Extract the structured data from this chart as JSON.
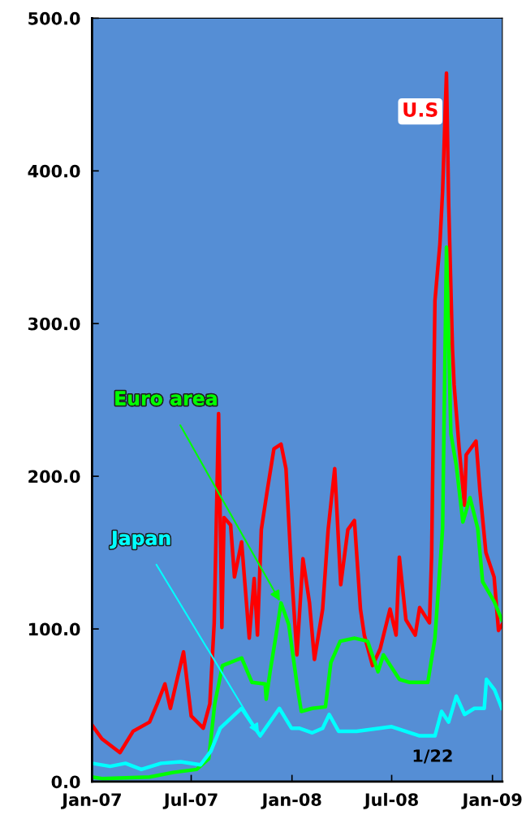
{
  "chart_data": {
    "type": "line",
    "xlim": [
      "2007-01-01",
      "2009-01-19"
    ],
    "xticks": [
      {
        "value": "2007-01-01",
        "label": "Jan-07"
      },
      {
        "value": "2007-07-01",
        "label": "Jul-07"
      },
      {
        "value": "2008-01-01",
        "label": "Jan-08"
      },
      {
        "value": "2008-07-01",
        "label": "Jul-08"
      },
      {
        "value": "2009-01-01",
        "label": "Jan-09"
      }
    ],
    "ylim": [
      0,
      500
    ],
    "yticks": [
      {
        "value": 0,
        "label": "0.0"
      },
      {
        "value": 100,
        "label": "100.0"
      },
      {
        "value": 200,
        "label": "200.0"
      },
      {
        "value": 300,
        "label": "300.0"
      },
      {
        "value": 400,
        "label": "400.0"
      },
      {
        "value": 500,
        "label": "500.0"
      }
    ],
    "grid": false,
    "legend": false,
    "marker": "none",
    "line_style": "solid",
    "annotations": [
      "1/22"
    ],
    "series": [
      {
        "name": "U.S",
        "color": "#ff0000",
        "x": [
          "2007-01-01",
          "2007-01-19",
          "2007-02-21",
          "2007-03-17",
          "2007-04-16",
          "2007-04-30",
          "2007-05-14",
          "2007-05-24",
          "2007-06-02",
          "2007-06-17",
          "2007-07-01",
          "2007-07-23",
          "2007-08-04",
          "2007-08-12",
          "2007-08-20",
          "2007-08-26",
          "2007-08-30",
          "2007-09-11",
          "2007-09-18",
          "2007-10-01",
          "2007-10-15",
          "2007-10-24",
          "2007-10-30",
          "2007-11-06",
          "2007-11-17",
          "2007-11-29",
          "2007-12-12",
          "2007-12-21",
          "2007-12-31",
          "2008-01-10",
          "2008-01-21",
          "2008-02-02",
          "2008-02-11",
          "2008-02-26",
          "2008-03-07",
          "2008-03-19",
          "2008-03-30",
          "2008-04-12",
          "2008-04-24",
          "2008-05-05",
          "2008-05-12",
          "2008-05-27",
          "2008-06-10",
          "2008-06-28",
          "2008-07-09",
          "2008-07-15",
          "2008-07-27",
          "2008-08-13",
          "2008-08-21",
          "2008-09-08",
          "2008-09-12",
          "2008-09-18",
          "2008-09-27",
          "2008-10-02",
          "2008-10-09",
          "2008-10-13",
          "2008-10-20",
          "2008-10-23",
          "2008-11-01",
          "2008-11-11",
          "2008-11-14",
          "2008-12-02",
          "2008-12-09",
          "2008-12-20",
          "2009-01-04",
          "2009-01-12",
          "2009-01-19"
        ],
        "values": [
          37,
          28,
          19,
          33,
          39,
          51,
          64,
          48,
          62,
          85,
          43,
          35,
          51,
          104,
          241,
          101,
          173,
          168,
          134,
          157,
          94,
          133,
          96,
          165,
          191,
          218,
          221,
          205,
          138,
          83,
          146,
          117,
          80,
          113,
          165,
          205,
          129,
          165,
          171,
          113,
          96,
          76,
          87,
          113,
          96,
          147,
          106,
          96,
          114,
          104,
          149,
          315,
          352,
          387,
          464,
          379,
          283,
          260,
          219,
          181,
          214,
          223,
          191,
          150,
          134,
          99,
          103
        ]
      },
      {
        "name": "Euro area",
        "color": "#00ff00",
        "x": [
          "2007-01-01",
          "2007-01-19",
          "2007-04-16",
          "2007-05-29",
          "2007-07-11",
          "2007-08-02",
          "2007-08-13",
          "2007-08-27",
          "2007-10-01",
          "2007-10-20",
          "2007-11-13",
          "2007-11-15",
          "2007-11-22",
          "2007-12-02",
          "2007-12-12",
          "2007-12-26",
          "2008-01-10",
          "2008-01-18",
          "2008-02-07",
          "2008-03-02",
          "2008-03-12",
          "2008-03-29",
          "2008-04-24",
          "2008-05-18",
          "2008-06-06",
          "2008-06-16",
          "2008-07-15",
          "2008-08-03",
          "2008-09-05",
          "2008-09-18",
          "2008-10-02",
          "2008-10-09",
          "2008-10-17",
          "2008-10-27",
          "2008-11-08",
          "2008-11-21",
          "2008-12-05",
          "2008-12-14",
          "2009-01-04",
          "2009-01-18"
        ],
        "values": [
          3,
          2,
          3,
          6,
          8,
          15,
          51,
          76,
          81,
          65,
          64,
          54,
          72,
          94,
          117,
          103,
          64,
          46,
          48,
          49,
          78,
          92,
          94,
          92,
          72,
          83,
          67,
          65,
          65,
          94,
          166,
          350,
          228,
          207,
          170,
          186,
          166,
          131,
          118,
          106
        ]
      },
      {
        "name": "Japan",
        "color": "#00ffff",
        "x": [
          "2007-01-01",
          "2007-02-03",
          "2007-03-03",
          "2007-04-01",
          "2007-05-07",
          "2007-06-12",
          "2007-07-18",
          "2007-08-06",
          "2007-08-23",
          "2007-10-01",
          "2007-11-04",
          "2007-12-09",
          "2007-12-31",
          "2008-01-14",
          "2008-02-07",
          "2008-02-26",
          "2008-03-09",
          "2008-03-26",
          "2008-04-28",
          "2008-07-01",
          "2008-08-21",
          "2008-09-18",
          "2008-09-30",
          "2008-10-13",
          "2008-10-27",
          "2008-11-11",
          "2008-11-29",
          "2008-12-17",
          "2008-12-21",
          "2009-01-05",
          "2009-01-18"
        ],
        "values": [
          12,
          10,
          12,
          8,
          12,
          13,
          11,
          20,
          35,
          48,
          30,
          48,
          35,
          35,
          32,
          35,
          44,
          33,
          33,
          36,
          30,
          30,
          46,
          39,
          56,
          44,
          48,
          48,
          67,
          60,
          48
        ]
      }
    ]
  }
}
